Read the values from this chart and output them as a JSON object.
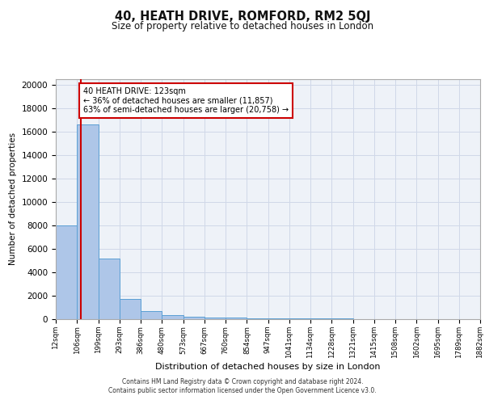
{
  "title": "40, HEATH DRIVE, ROMFORD, RM2 5QJ",
  "subtitle": "Size of property relative to detached houses in London",
  "xlabel": "Distribution of detached houses by size in London",
  "ylabel": "Number of detached properties",
  "property_label": "40 HEATH DRIVE: 123sqm",
  "pct_smaller": 36,
  "n_smaller": 11857,
  "pct_larger_semi": 63,
  "n_larger_semi": 20758,
  "bin_edges": [
    12,
    106,
    199,
    293,
    386,
    480,
    573,
    667,
    760,
    854,
    947,
    1041,
    1134,
    1228,
    1321,
    1415,
    1508,
    1602,
    1695,
    1789,
    1882
  ],
  "bin_counts": [
    8000,
    16600,
    5200,
    1700,
    700,
    350,
    230,
    150,
    110,
    80,
    60,
    50,
    40,
    35,
    30,
    25,
    20,
    18,
    15,
    12
  ],
  "bar_color": "#aec6e8",
  "bar_edge_color": "#5a9fd4",
  "vline_color": "#cc0000",
  "vline_x": 123,
  "annotation_box_color": "#ffffff",
  "annotation_box_edge": "#cc0000",
  "grid_color": "#d0d8e8",
  "bg_color": "#eef2f8",
  "ylim": [
    0,
    20500
  ],
  "yticks": [
    0,
    2000,
    4000,
    6000,
    8000,
    10000,
    12000,
    14000,
    16000,
    18000,
    20000
  ],
  "tick_labels": [
    "12sqm",
    "106sqm",
    "199sqm",
    "293sqm",
    "386sqm",
    "480sqm",
    "573sqm",
    "667sqm",
    "760sqm",
    "854sqm",
    "947sqm",
    "1041sqm",
    "1134sqm",
    "1228sqm",
    "1321sqm",
    "1415sqm",
    "1508sqm",
    "1602sqm",
    "1695sqm",
    "1789sqm",
    "1882sqm"
  ],
  "footer_line1": "Contains HM Land Registry data © Crown copyright and database right 2024.",
  "footer_line2": "Contains public sector information licensed under the Open Government Licence v3.0."
}
